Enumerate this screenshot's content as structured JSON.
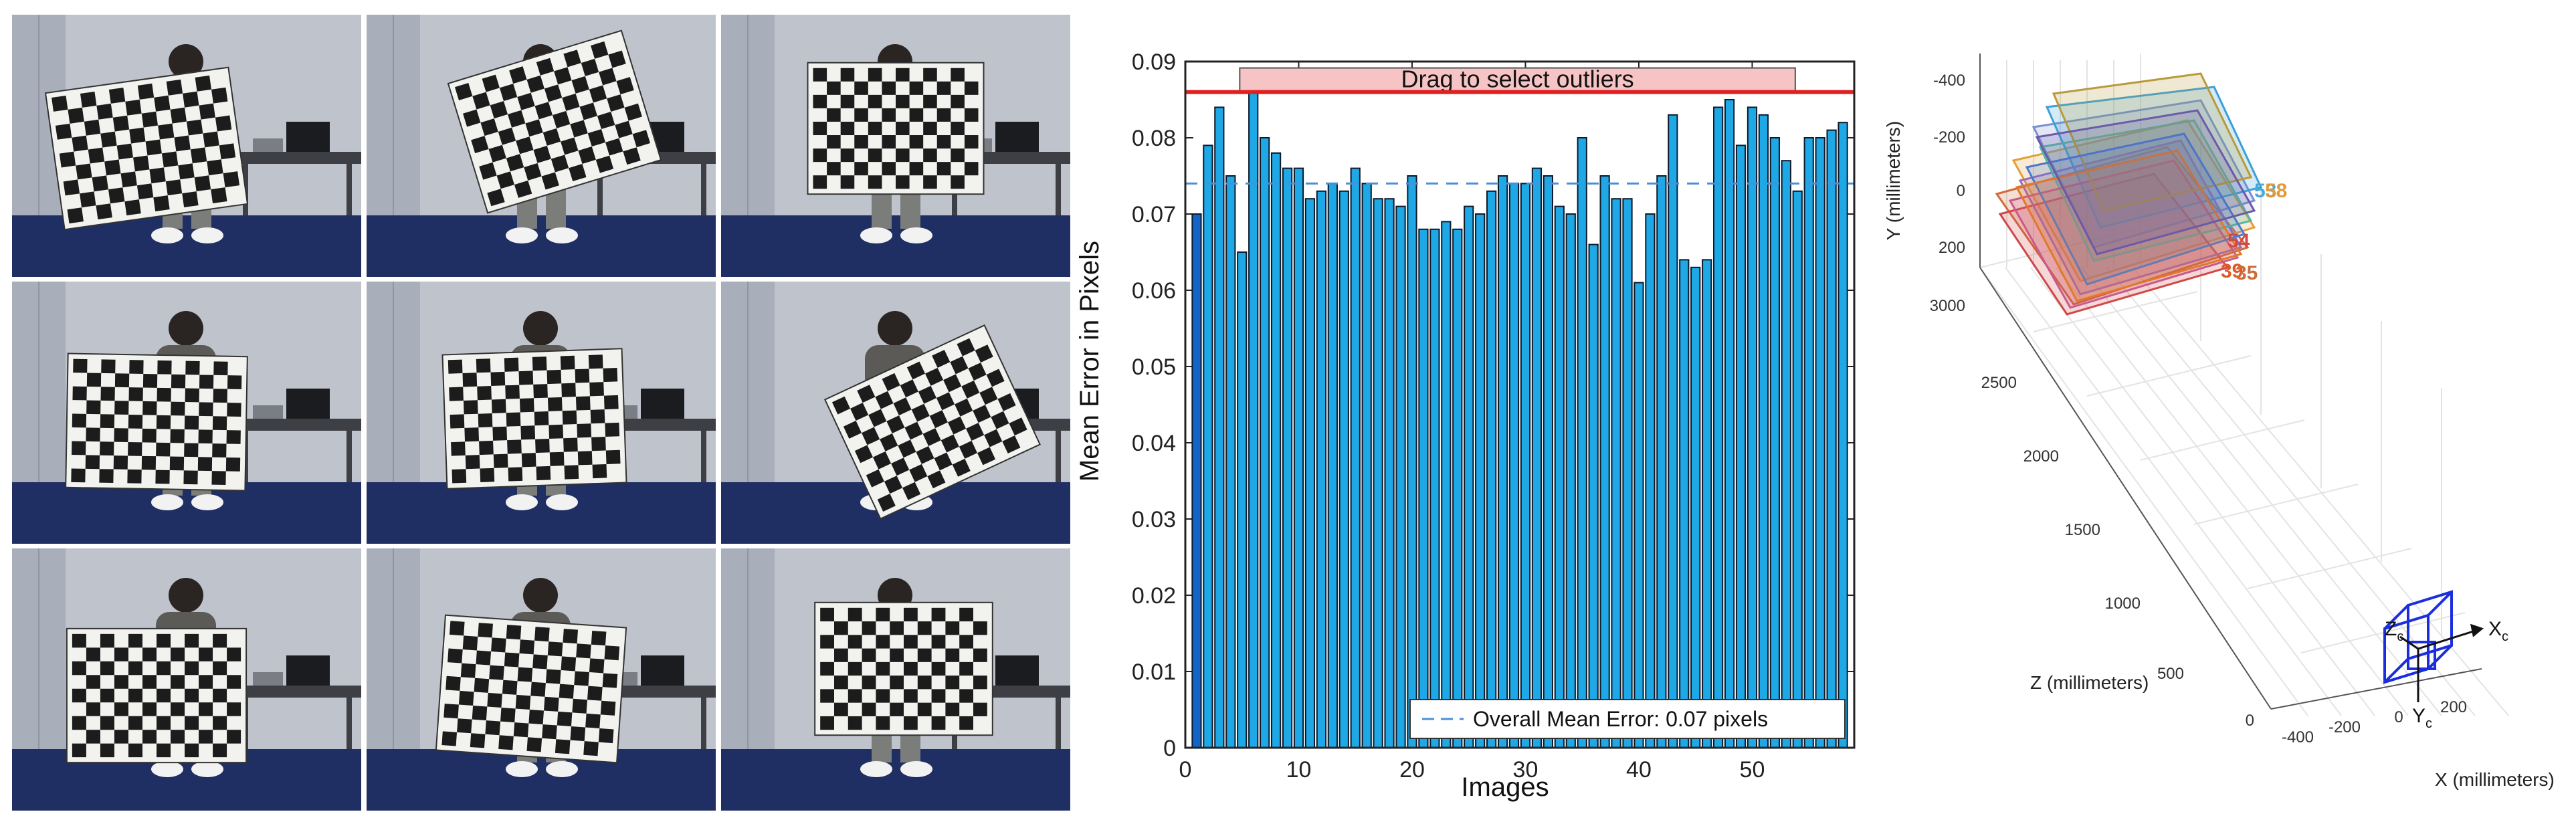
{
  "photos": [
    {
      "id": 1,
      "rotation": -8,
      "scale": 1.0,
      "dx": -60,
      "dy": 0
    },
    {
      "id": 2,
      "rotation": -17,
      "scale": 0.98,
      "dx": 20,
      "dy": -40
    },
    {
      "id": 3,
      "rotation": 0,
      "scale": 0.95,
      "dx": 0,
      "dy": -30
    },
    {
      "id": 4,
      "rotation": 1,
      "scale": 0.97,
      "dx": -45,
      "dy": 10
    },
    {
      "id": 5,
      "rotation": -2,
      "scale": 0.97,
      "dx": -10,
      "dy": 5
    },
    {
      "id": 6,
      "rotation": -25,
      "scale": 0.95,
      "dx": 55,
      "dy": 10
    },
    {
      "id": 7,
      "rotation": 0,
      "scale": 0.97,
      "dx": -45,
      "dy": 20
    },
    {
      "id": 8,
      "rotation": 4,
      "scale": 0.98,
      "dx": -15,
      "dy": 10
    },
    {
      "id": 9,
      "rotation": 0,
      "scale": 0.96,
      "dx": 12,
      "dy": -20
    }
  ],
  "colors": {
    "bar": "#1ea8e6",
    "bar_selected": "#1464c8",
    "overall_line": "#4a90d8",
    "outlier_line": "#e02020",
    "outlier_box": "#f6c4c4",
    "scene_floor": "#1f2f63",
    "scene_wall": "#c6cad2",
    "board_white": "#f2f2ee",
    "board_black": "#1c1c1c",
    "camera": "#1a2ee0"
  },
  "chart_data": [
    {
      "type": "bar",
      "title": "",
      "xlabel": "Images",
      "ylabel": "Mean Error in Pixels",
      "xlim": [
        0,
        59
      ],
      "ylim": [
        0,
        0.09
      ],
      "xticks": [
        0,
        10,
        20,
        30,
        40,
        50
      ],
      "yticks": [
        0,
        0.01,
        0.02,
        0.03,
        0.04,
        0.05,
        0.06,
        0.07,
        0.08,
        0.09
      ],
      "grid": false,
      "x": [
        1,
        2,
        3,
        4,
        5,
        6,
        7,
        8,
        9,
        10,
        11,
        12,
        13,
        14,
        15,
        16,
        17,
        18,
        19,
        20,
        21,
        22,
        23,
        24,
        25,
        26,
        27,
        28,
        29,
        30,
        31,
        32,
        33,
        34,
        35,
        36,
        37,
        38,
        39,
        40,
        41,
        42,
        43,
        44,
        45,
        46,
        47,
        48,
        49,
        50,
        51,
        52,
        53,
        54,
        55,
        56,
        57,
        58
      ],
      "values": [
        0.07,
        0.079,
        0.084,
        0.075,
        0.065,
        0.086,
        0.08,
        0.078,
        0.076,
        0.076,
        0.072,
        0.073,
        0.074,
        0.073,
        0.076,
        0.074,
        0.072,
        0.072,
        0.071,
        0.075,
        0.068,
        0.068,
        0.069,
        0.068,
        0.071,
        0.07,
        0.073,
        0.075,
        0.074,
        0.074,
        0.076,
        0.075,
        0.071,
        0.07,
        0.08,
        0.066,
        0.075,
        0.072,
        0.072,
        0.061,
        0.07,
        0.075,
        0.083,
        0.064,
        0.063,
        0.064,
        0.084,
        0.085,
        0.079,
        0.084,
        0.083,
        0.08,
        0.077,
        0.073,
        0.08,
        0.08,
        0.081,
        0.082
      ],
      "selected_index": 0,
      "overall_mean": 0.074,
      "outlier_threshold": 0.086,
      "outlier_prompt": "Drag to select outliers",
      "legend": "Overall Mean Error: 0.07 pixels",
      "legend_position": "bottom-right"
    },
    {
      "type": "scatter",
      "title": "",
      "xlabel": "X (millimeters)",
      "ylabel": "Y (millimeters)",
      "zlabel": "Z (millimeters)",
      "y_ticks": [
        "-400",
        "-200",
        "0",
        "200"
      ],
      "z_ticks": [
        "3000",
        "2500",
        "2000",
        "1500",
        "1000",
        "500",
        "0"
      ],
      "x_ticks": [
        "-400",
        "-200",
        "0",
        "200"
      ],
      "board_labels": [
        "53",
        "58",
        "54",
        "39",
        "35"
      ],
      "camera_axes": {
        "z": "Z",
        "x": "X",
        "y": "Y",
        "subscript": "c"
      },
      "grid": true
    }
  ]
}
